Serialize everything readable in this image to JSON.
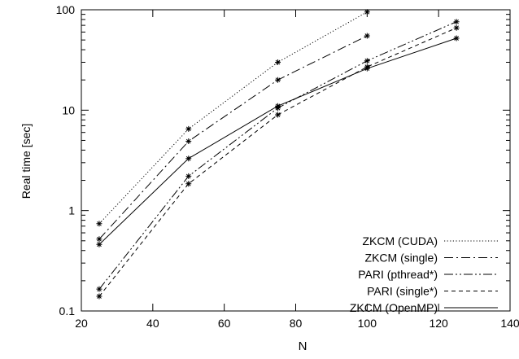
{
  "chart_data": {
    "type": "line",
    "xlabel": "N",
    "ylabel": "Real time [sec]",
    "xlim": [
      20,
      140
    ],
    "ylim": [
      0.1,
      100
    ],
    "yscale": "log",
    "x_ticks": [
      "20",
      "40",
      "60",
      "80",
      "100",
      "120",
      "140"
    ],
    "y_ticks": [
      "0.1",
      "1",
      "10",
      "100"
    ],
    "grid": false,
    "legend_position": "bottom-right",
    "series": [
      {
        "name": "ZKCM (CUDA)",
        "x": [
          25,
          50,
          75,
          100
        ],
        "values": [
          0.74,
          6.5,
          30,
          95
        ],
        "dash": "dotted"
      },
      {
        "name": "ZKCM (single)",
        "x": [
          25,
          50,
          75,
          100
        ],
        "values": [
          0.52,
          4.9,
          20,
          55
        ],
        "dash": "dashdot"
      },
      {
        "name": "PARI (pthread*)",
        "x": [
          25,
          50,
          75,
          100,
          125
        ],
        "values": [
          0.165,
          2.2,
          10.5,
          31,
          76
        ],
        "dash": "dashdotdot"
      },
      {
        "name": "PARI (single*)",
        "x": [
          25,
          50,
          75,
          100,
          125
        ],
        "values": [
          0.14,
          1.85,
          9,
          27,
          66
        ],
        "dash": "dashed"
      },
      {
        "name": "ZKCM (OpenMP)",
        "x": [
          25,
          50,
          75,
          100,
          125
        ],
        "values": [
          0.46,
          3.3,
          11,
          26,
          52
        ],
        "dash": "solid"
      }
    ]
  }
}
